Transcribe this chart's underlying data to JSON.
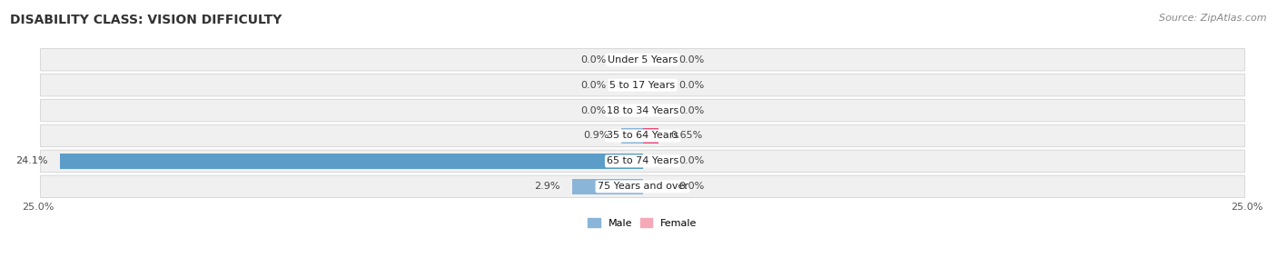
{
  "title": "DISABILITY CLASS: VISION DIFFICULTY",
  "source": "Source: ZipAtlas.com",
  "categories": [
    "Under 5 Years",
    "5 to 17 Years",
    "18 to 34 Years",
    "35 to 64 Years",
    "65 to 74 Years",
    "75 Years and over"
  ],
  "male_values": [
    0.0,
    0.0,
    0.0,
    0.9,
    24.1,
    2.9
  ],
  "female_values": [
    0.0,
    0.0,
    0.0,
    0.65,
    0.0,
    0.0
  ],
  "male_label_overrides": [
    "0.0%",
    "0.0%",
    "0.0%",
    "0.9%",
    "24.1%",
    "2.9%"
  ],
  "female_label_overrides": [
    "0.0%",
    "0.0%",
    "0.0%",
    "0.65%",
    "0.0%",
    "0.0%"
  ],
  "male_color": "#8ab4d8",
  "female_color": "#f5a8b8",
  "female_strong_color": "#e84c7d",
  "male_strong_color": "#5b9dc8",
  "axis_max": 25.0,
  "bg_color": "#ffffff",
  "row_color_even": "#f2f2f2",
  "row_color_odd": "#e8e8e8",
  "title_fontsize": 10,
  "source_fontsize": 8,
  "label_fontsize": 8,
  "category_fontsize": 8,
  "tick_fontsize": 8
}
